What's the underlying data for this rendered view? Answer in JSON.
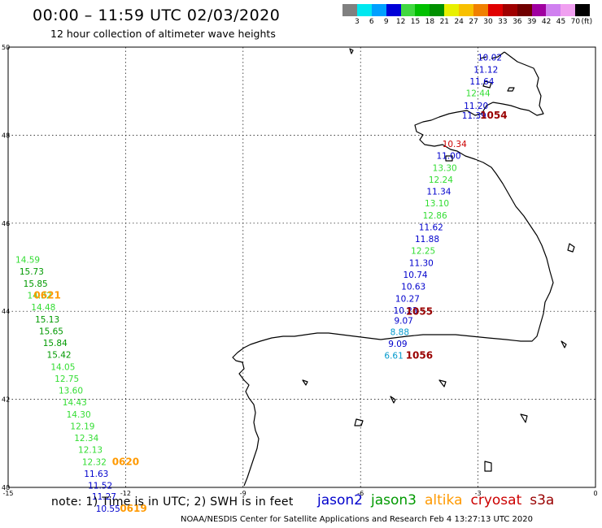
{
  "header": {
    "title": "00:00 – 11:59 UTC 02/03/2020",
    "subtitle": "12 hour collection of altimeter wave heights"
  },
  "colorbar": {
    "unit": "(ft)",
    "swatches": [
      "#808080",
      "#00e8f0",
      "#00a0ff",
      "#0000d8",
      "#40d840",
      "#00c000",
      "#009000",
      "#e8f000",
      "#f8c000",
      "#f08000",
      "#e00000",
      "#a00000",
      "#700000",
      "#a000a0",
      "#d080f0",
      "#f0a0f0",
      "#000000"
    ],
    "labels": [
      "3",
      "6",
      "9",
      "12",
      "15",
      "18",
      "21",
      "24",
      "27",
      "30",
      "33",
      "36",
      "39",
      "42",
      "45",
      "70"
    ]
  },
  "axes": {
    "lon_ticks": [
      "-15",
      "-12",
      "-9",
      "-6",
      "-3",
      "0"
    ],
    "lat_ticks": [
      "50",
      "48",
      "46",
      "44",
      "42",
      "40"
    ]
  },
  "colors": {
    "jason2": "#0000cc",
    "jason3": "#009900",
    "altika": "#ff9900",
    "cryosat": "#cc0000",
    "s3a": "#990000",
    "swh_light_green": "#33dd33",
    "swh_dark_green": "#009900",
    "swh_blue": "#0000cc",
    "swh_cyan": "#0099cc",
    "swh_red": "#cc0000"
  },
  "observations": [
    {
      "lon": -2.7,
      "lat": 49.7,
      "value": "10.02",
      "color": "#0000cc"
    },
    {
      "lon": -2.8,
      "lat": 49.42,
      "value": "11.12",
      "color": "#0000cc"
    },
    {
      "lon": -2.9,
      "lat": 49.15,
      "value": "11.64",
      "color": "#0000cc"
    },
    {
      "lon": -3.0,
      "lat": 48.88,
      "value": "12.44",
      "color": "#33dd33"
    },
    {
      "lon": -3.05,
      "lat": 48.6,
      "value": "11.20",
      "color": "#0000cc"
    },
    {
      "lon": -3.1,
      "lat": 48.38,
      "value": "11.39",
      "color": "#0000cc"
    },
    {
      "lon": -3.6,
      "lat": 47.73,
      "value": "10.34",
      "color": "#cc0000"
    },
    {
      "lon": -3.75,
      "lat": 47.46,
      "value": "11.00",
      "color": "#0000cc"
    },
    {
      "lon": -3.85,
      "lat": 47.19,
      "value": "13.30",
      "color": "#33dd33"
    },
    {
      "lon": -3.95,
      "lat": 46.92,
      "value": "12.24",
      "color": "#33dd33"
    },
    {
      "lon": -4.0,
      "lat": 46.65,
      "value": "11.34",
      "color": "#0000cc"
    },
    {
      "lon": -4.05,
      "lat": 46.38,
      "value": "13.10",
      "color": "#33dd33"
    },
    {
      "lon": -4.1,
      "lat": 46.11,
      "value": "12.86",
      "color": "#33dd33"
    },
    {
      "lon": -4.2,
      "lat": 45.84,
      "value": "11.62",
      "color": "#0000cc"
    },
    {
      "lon": -4.3,
      "lat": 45.57,
      "value": "11.88",
      "color": "#0000cc"
    },
    {
      "lon": -4.4,
      "lat": 45.3,
      "value": "12.25",
      "color": "#33dd33"
    },
    {
      "lon": -4.45,
      "lat": 45.03,
      "value": "11.30",
      "color": "#0000cc"
    },
    {
      "lon": -4.6,
      "lat": 44.76,
      "value": "10.74",
      "color": "#0000cc"
    },
    {
      "lon": -4.65,
      "lat": 44.49,
      "value": "10.63",
      "color": "#0000cc"
    },
    {
      "lon": -4.8,
      "lat": 44.22,
      "value": "10.27",
      "color": "#0000cc"
    },
    {
      "lon": -4.85,
      "lat": 43.95,
      "value": "10.23",
      "color": "#0000cc"
    },
    {
      "lon": -4.9,
      "lat": 43.72,
      "value": "9.07",
      "color": "#0000cc"
    },
    {
      "lon": -5.0,
      "lat": 43.46,
      "value": "8.88",
      "color": "#0099cc"
    },
    {
      "lon": -5.05,
      "lat": 43.19,
      "value": "9.09",
      "color": "#0000cc"
    },
    {
      "lon": -5.15,
      "lat": 42.92,
      "value": "6.61",
      "color": "#0099cc"
    },
    {
      "lon": -14.5,
      "lat": 45.1,
      "value": "14.59",
      "color": "#33dd33"
    },
    {
      "lon": -14.4,
      "lat": 44.83,
      "value": "15.73",
      "color": "#009900"
    },
    {
      "lon": -14.3,
      "lat": 44.56,
      "value": "15.85",
      "color": "#009900"
    },
    {
      "lon": -14.2,
      "lat": 44.29,
      "value": "14.32",
      "color": "#33dd33"
    },
    {
      "lon": -14.1,
      "lat": 44.02,
      "value": "14.48",
      "color": "#33dd33"
    },
    {
      "lon": -14.0,
      "lat": 43.75,
      "value": "15.13",
      "color": "#009900"
    },
    {
      "lon": -13.9,
      "lat": 43.48,
      "value": "15.65",
      "color": "#009900"
    },
    {
      "lon": -13.8,
      "lat": 43.21,
      "value": "15.84",
      "color": "#009900"
    },
    {
      "lon": -13.7,
      "lat": 42.94,
      "value": "15.42",
      "color": "#009900"
    },
    {
      "lon": -13.6,
      "lat": 42.67,
      "value": "14.05",
      "color": "#33dd33"
    },
    {
      "lon": -13.5,
      "lat": 42.4,
      "value": "12.75",
      "color": "#33dd33"
    },
    {
      "lon": -13.4,
      "lat": 42.13,
      "value": "13.60",
      "color": "#33dd33"
    },
    {
      "lon": -13.3,
      "lat": 41.86,
      "value": "14.43",
      "color": "#33dd33"
    },
    {
      "lon": -13.2,
      "lat": 41.59,
      "value": "14.30",
      "color": "#33dd33"
    },
    {
      "lon": -13.1,
      "lat": 41.32,
      "value": "12.19",
      "color": "#33dd33"
    },
    {
      "lon": -13.0,
      "lat": 41.05,
      "value": "12.34",
      "color": "#33dd33"
    },
    {
      "lon": -12.9,
      "lat": 40.78,
      "value": "12.13",
      "color": "#33dd33"
    },
    {
      "lon": -12.8,
      "lat": 40.51,
      "value": "12.32",
      "color": "#33dd33"
    },
    {
      "lon": -12.75,
      "lat": 40.24,
      "value": "11.63",
      "color": "#0000cc"
    },
    {
      "lon": -12.65,
      "lat": 39.97,
      "value": "11.52",
      "color": "#0000cc"
    },
    {
      "lon": -12.55,
      "lat": 39.72,
      "value": "11.27",
      "color": "#0000cc"
    },
    {
      "lon": -12.45,
      "lat": 39.45,
      "value": "10.55",
      "color": "#0000cc"
    }
  ],
  "pass_labels": [
    {
      "lon": -2.6,
      "lat": 48.38,
      "value": "1054",
      "color": "#990000"
    },
    {
      "lon": -4.5,
      "lat": 43.92,
      "value": "1055",
      "color": "#990000"
    },
    {
      "lon": -4.5,
      "lat": 42.92,
      "value": "1056",
      "color": "#990000"
    },
    {
      "lon": -14.0,
      "lat": 44.29,
      "value": "0621",
      "color": "#ff9900"
    },
    {
      "lon": -12.0,
      "lat": 40.51,
      "value": "0620",
      "color": "#ff9900"
    },
    {
      "lon": -11.8,
      "lat": 39.45,
      "value": "0619",
      "color": "#ff9900"
    }
  ],
  "footer": {
    "note": "note: 1) Time is in UTC; 2) SWH is in feet",
    "legend": [
      {
        "label": "jason2",
        "color": "#0000cc"
      },
      {
        "label": "jason3",
        "color": "#009900"
      },
      {
        "label": "altika",
        "color": "#ff9900"
      },
      {
        "label": "cryosat",
        "color": "#cc0000"
      },
      {
        "label": "s3a",
        "color": "#990000"
      }
    ],
    "credit": "NOAA/NESDIS Center for Satellite Applications and Research     Feb  4 13:27:13 UTC 2020"
  }
}
